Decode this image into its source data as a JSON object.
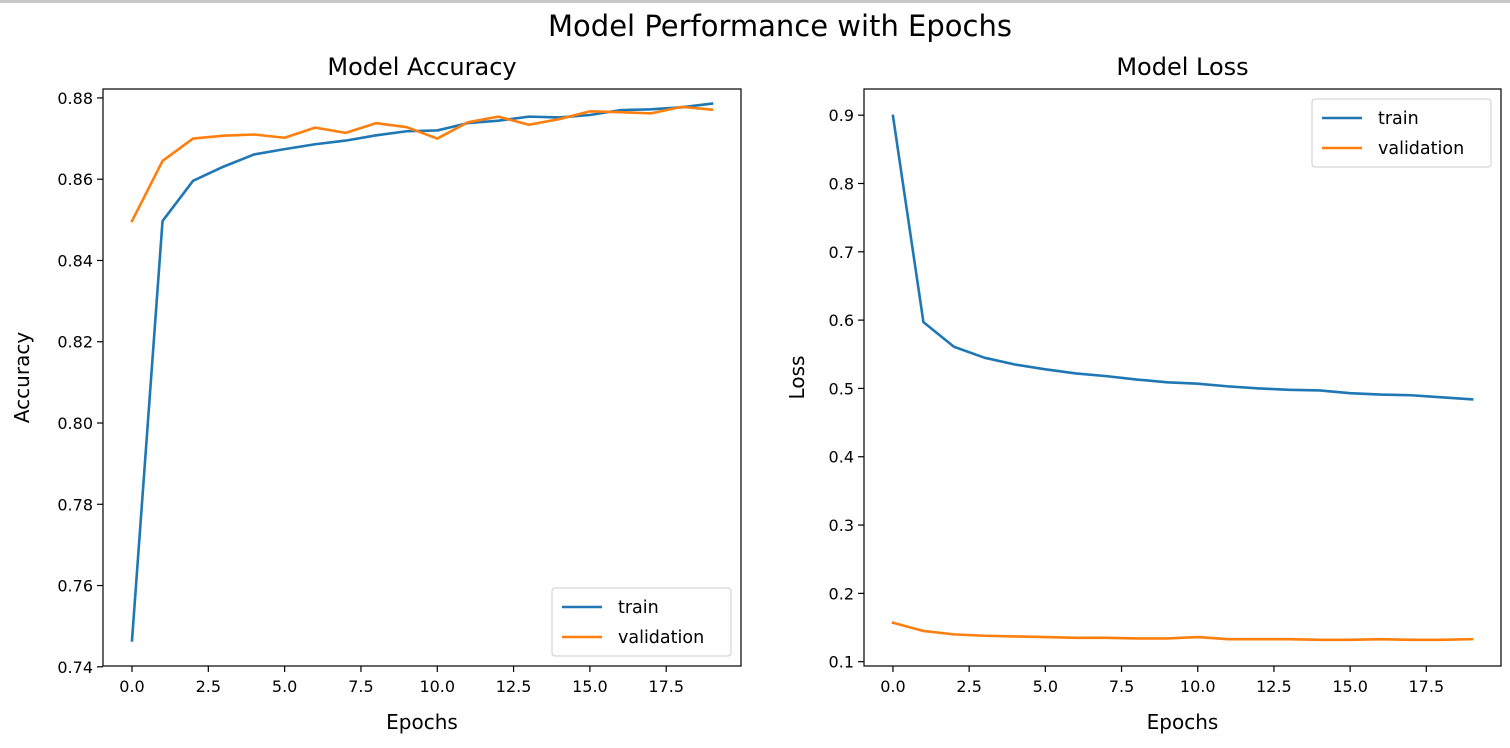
{
  "figure": {
    "title": "Model Performance with Epochs"
  },
  "chart_data": [
    {
      "type": "line",
      "title": "Model Accuracy",
      "xlabel": "Epochs",
      "ylabel": "Accuracy",
      "xlim": [
        -0.95,
        19.95
      ],
      "ylim": [
        0.7402,
        0.8822
      ],
      "xticks": [
        0.0,
        2.5,
        5.0,
        7.5,
        10.0,
        12.5,
        15.0,
        17.5
      ],
      "xtick_labels": [
        "0.0",
        "2.5",
        "5.0",
        "7.5",
        "10.0",
        "12.5",
        "15.0",
        "17.5"
      ],
      "yticks": [
        0.74,
        0.76,
        0.78,
        0.8,
        0.82,
        0.84,
        0.86,
        0.88
      ],
      "ytick_labels": [
        "0.74",
        "0.76",
        "0.78",
        "0.80",
        "0.82",
        "0.84",
        "0.86",
        "0.88"
      ],
      "grid": false,
      "legend": "lower-right",
      "x": [
        0,
        1,
        2,
        3,
        4,
        5,
        6,
        7,
        8,
        9,
        10,
        11,
        12,
        13,
        14,
        15,
        16,
        17,
        18,
        19
      ],
      "series": [
        {
          "name": "train",
          "color": "#1f77b4",
          "values": [
            0.7465,
            0.8497,
            0.8596,
            0.8631,
            0.8661,
            0.8674,
            0.8686,
            0.8695,
            0.8708,
            0.8718,
            0.872,
            0.8738,
            0.8744,
            0.8754,
            0.8752,
            0.8758,
            0.877,
            0.8772,
            0.8777,
            0.8786
          ]
        },
        {
          "name": "validation",
          "color": "#ff7f0e",
          "values": [
            0.8497,
            0.8645,
            0.87,
            0.8707,
            0.871,
            0.8702,
            0.8727,
            0.8714,
            0.8738,
            0.8728,
            0.87,
            0.874,
            0.8754,
            0.8734,
            0.8748,
            0.8767,
            0.8765,
            0.8762,
            0.8778,
            0.8771
          ]
        }
      ]
    },
    {
      "type": "line",
      "title": "Model Loss",
      "xlabel": "Epochs",
      "ylabel": "Loss",
      "xlim": [
        -0.95,
        19.95
      ],
      "ylim": [
        0.0937,
        0.9383
      ],
      "xticks": [
        0.0,
        2.5,
        5.0,
        7.5,
        10.0,
        12.5,
        15.0,
        17.5
      ],
      "xtick_labels": [
        "0.0",
        "2.5",
        "5.0",
        "7.5",
        "10.0",
        "12.5",
        "15.0",
        "17.5"
      ],
      "yticks": [
        0.1,
        0.2,
        0.3,
        0.4,
        0.5,
        0.6,
        0.7,
        0.8,
        0.9
      ],
      "ytick_labels": [
        "0.1",
        "0.2",
        "0.3",
        "0.4",
        "0.5",
        "0.6",
        "0.7",
        "0.8",
        "0.9"
      ],
      "grid": false,
      "legend": "upper-right",
      "x": [
        0,
        1,
        2,
        3,
        4,
        5,
        6,
        7,
        8,
        9,
        10,
        11,
        12,
        13,
        14,
        15,
        16,
        17,
        18,
        19
      ],
      "series": [
        {
          "name": "train",
          "color": "#1f77b4",
          "values": [
            0.899,
            0.597,
            0.561,
            0.545,
            0.535,
            0.528,
            0.522,
            0.518,
            0.513,
            0.509,
            0.507,
            0.503,
            0.5,
            0.498,
            0.497,
            0.493,
            0.491,
            0.49,
            0.487,
            0.484
          ]
        },
        {
          "name": "validation",
          "color": "#ff7f0e",
          "values": [
            0.157,
            0.145,
            0.14,
            0.138,
            0.137,
            0.136,
            0.135,
            0.135,
            0.134,
            0.134,
            0.136,
            0.133,
            0.133,
            0.133,
            0.132,
            0.132,
            0.133,
            0.132,
            0.132,
            0.133
          ]
        }
      ]
    }
  ]
}
